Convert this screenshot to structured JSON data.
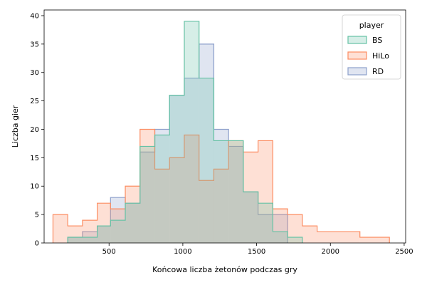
{
  "chart_data": {
    "type": "histogram",
    "xlabel": "Końcowa liczba żetonów podczas gry",
    "ylabel": "Liczba gier",
    "xlim": [
      60,
      2510
    ],
    "ylim": [
      0,
      41
    ],
    "xticks": [
      500,
      1000,
      1500,
      2000,
      2500
    ],
    "yticks": [
      0,
      5,
      10,
      15,
      20,
      25,
      30,
      35,
      40
    ],
    "legend": {
      "title": "player",
      "position": "top-right",
      "entries": [
        "BS",
        "HiLo",
        "RD"
      ]
    },
    "series": [
      {
        "name": "RD",
        "fill": "#8da0cb",
        "stroke": "#8da0cb",
        "bin_edges": [
          220,
          320,
          420,
          510,
          610,
          710,
          810,
          910,
          1010,
          1110,
          1210,
          1310,
          1410,
          1510,
          1610,
          1710
        ],
        "counts": [
          1,
          2,
          3,
          8,
          7,
          16,
          20,
          26,
          29,
          35,
          20,
          17,
          9,
          5,
          5
        ]
      },
      {
        "name": "HiLo",
        "fill": "#fc8d62",
        "stroke": "#fc8d62",
        "bin_edges": [
          120,
          220,
          320,
          420,
          510,
          610,
          710,
          810,
          910,
          1010,
          1110,
          1210,
          1310,
          1410,
          1510,
          1610,
          1710,
          1810,
          1910,
          2200,
          2400
        ],
        "counts": [
          5,
          3,
          4,
          7,
          6,
          10,
          20,
          13,
          15,
          19,
          11,
          13,
          18,
          16,
          18,
          6,
          5,
          3,
          2,
          1
        ]
      },
      {
        "name": "BS",
        "fill": "#66c2a5",
        "stroke": "#66c2a5",
        "bin_edges": [
          220,
          320,
          420,
          510,
          610,
          710,
          810,
          910,
          1010,
          1110,
          1210,
          1310,
          1410,
          1510,
          1610,
          1710,
          1810
        ],
        "counts": [
          1,
          1,
          3,
          4,
          7,
          17,
          19,
          26,
          39,
          29,
          18,
          18,
          9,
          7,
          2,
          1
        ]
      }
    ]
  }
}
